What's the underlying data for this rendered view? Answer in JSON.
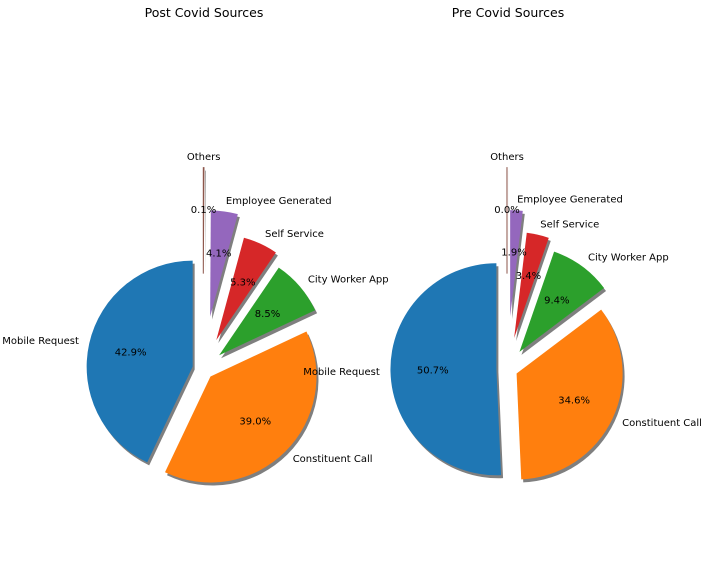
{
  "chart_data": [
    {
      "type": "pie",
      "title": "Post Covid Sources",
      "start_angle": 90,
      "direction": "counterclockwise",
      "shadow": true,
      "slices": [
        {
          "label": "Mobile Request",
          "value": 42.9,
          "pct_label": "42.9%",
          "color": "#1f77b4",
          "explode": 0.1
        },
        {
          "label": "Constituent Call",
          "value": 39.0,
          "pct_label": "39.0%",
          "color": "#ff7f0e",
          "explode": 0.1
        },
        {
          "label": "City Worker App",
          "value": 8.5,
          "pct_label": "8.5%",
          "color": "#2ca02c",
          "explode": 0.2
        },
        {
          "label": "Self Service",
          "value": 5.3,
          "pct_label": "5.3%",
          "color": "#d62728",
          "explode": 0.3
        },
        {
          "label": "Employee Generated",
          "value": 4.1,
          "pct_label": "4.1%",
          "color": "#9467bd",
          "explode": 0.5
        },
        {
          "label": "Others",
          "value": 0.1,
          "pct_label": "0.1%",
          "color": "#8c564b",
          "explode": 0.9
        }
      ]
    },
    {
      "type": "pie",
      "title": "Pre Covid Sources",
      "start_angle": 90,
      "direction": "counterclockwise",
      "shadow": true,
      "slices": [
        {
          "label": "Mobile Request",
          "value": 50.7,
          "pct_label": "50.7%",
          "color": "#1f77b4",
          "explode": 0.1
        },
        {
          "label": "Constituent Call",
          "value": 34.6,
          "pct_label": "34.6%",
          "color": "#ff7f0e",
          "explode": 0.1
        },
        {
          "label": "City Worker App",
          "value": 9.4,
          "pct_label": "9.4%",
          "color": "#2ca02c",
          "explode": 0.2
        },
        {
          "label": "Self Service",
          "value": 3.4,
          "pct_label": "3.4%",
          "color": "#d62728",
          "explode": 0.3
        },
        {
          "label": "Employee Generated",
          "value": 1.9,
          "pct_label": "1.9%",
          "color": "#9467bd",
          "explode": 0.5
        },
        {
          "label": "Others",
          "value": 0.0,
          "pct_label": "0.0%",
          "color": "#8c564b",
          "explode": 0.9
        }
      ]
    }
  ]
}
